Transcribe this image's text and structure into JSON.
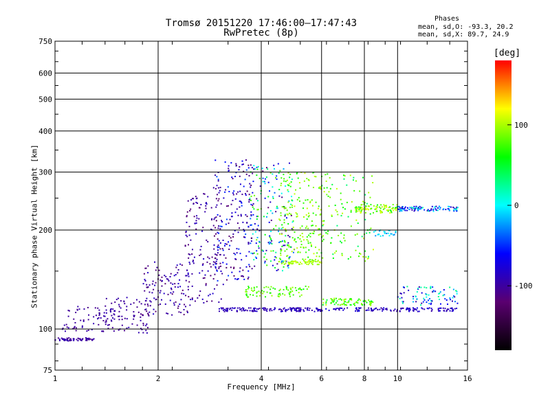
{
  "header": {
    "title_line1": "Tromsø 20151220 17:46:00–17:47:43",
    "title_line2": "RwPretec (8p)",
    "info_heading": "Phases",
    "info_o": "mean, sd,O: -93.3, 20.2",
    "info_x": "mean, sd,X:  89.7, 24.9"
  },
  "chart_data": {
    "type": "scatter",
    "xlabel": "Frequency [MHz]",
    "ylabel": "Stationary phase Virtual Height [km]",
    "xscale": "log",
    "yscale": "log",
    "xlim": [
      1,
      16
    ],
    "ylim": [
      75,
      750
    ],
    "x_ticks": [
      1,
      2,
      4,
      6,
      8,
      10,
      16
    ],
    "y_ticks": [
      75,
      100,
      200,
      300,
      400,
      500,
      600,
      750
    ],
    "grid": true,
    "colorbar": {
      "label": "[deg]",
      "range": [
        -180,
        180
      ],
      "ticks": [
        -100,
        0,
        100
      ],
      "colors": [
        "#000000",
        "#5a0070",
        "#0000ff",
        "#00ffff",
        "#00ff00",
        "#ffff00",
        "#ff0000"
      ]
    },
    "point_clusters": [
      {
        "x": [
          1.0,
          1.3
        ],
        "y": [
          92,
          94
        ],
        "phase": [
          -110,
          -90
        ],
        "n": 60
      },
      {
        "x": [
          1.05,
          1.5
        ],
        "y": [
          98,
          118
        ],
        "phase": [
          -110,
          -90
        ],
        "n": 70
      },
      {
        "x": [
          1.4,
          1.9
        ],
        "y": [
          97,
          125
        ],
        "phase": [
          -110,
          -90
        ],
        "n": 80
      },
      {
        "x": [
          1.8,
          2.5
        ],
        "y": [
          110,
          160
        ],
        "phase": [
          -120,
          -80
        ],
        "n": 120
      },
      {
        "x": [
          2.4,
          3.1
        ],
        "y": [
          120,
          260
        ],
        "phase": [
          -120,
          -80
        ],
        "n": 150
      },
      {
        "x": [
          2.9,
          3.8
        ],
        "y": [
          140,
          330
        ],
        "phase": [
          -130,
          -40
        ],
        "n": 200
      },
      {
        "x": [
          3.0,
          6.0
        ],
        "y": [
          113,
          116
        ],
        "phase": [
          -100,
          -80
        ],
        "n": 140
      },
      {
        "x": [
          6.0,
          15.0
        ],
        "y": [
          113,
          116
        ],
        "phase": [
          -100,
          -70
        ],
        "n": 120
      },
      {
        "x": [
          3.7,
          5.0
        ],
        "y": [
          150,
          320
        ],
        "phase": [
          -120,
          90
        ],
        "n": 200
      },
      {
        "x": [
          4.5,
          6.0
        ],
        "y": [
          160,
          300
        ],
        "phase": [
          60,
          110
        ],
        "n": 180
      },
      {
        "x": [
          4.5,
          6.0
        ],
        "y": [
          157,
          162
        ],
        "phase": [
          90,
          110
        ],
        "n": 60
      },
      {
        "x": [
          3.6,
          5.5
        ],
        "y": [
          125,
          135
        ],
        "phase": [
          60,
          100
        ],
        "n": 80
      },
      {
        "x": [
          6.0,
          8.5
        ],
        "y": [
          118,
          124
        ],
        "phase": [
          40,
          110
        ],
        "n": 80
      },
      {
        "x": [
          6.0,
          8.5
        ],
        "y": [
          160,
          300
        ],
        "phase": [
          30,
          110
        ],
        "n": 120
      },
      {
        "x": [
          7.5,
          10.0
        ],
        "y": [
          225,
          240
        ],
        "phase": [
          60,
          120
        ],
        "n": 90
      },
      {
        "x": [
          10.0,
          15.0
        ],
        "y": [
          228,
          236
        ],
        "phase": [
          -100,
          20
        ],
        "n": 100
      },
      {
        "x": [
          10.0,
          15.0
        ],
        "y": [
          118,
          135
        ],
        "phase": [
          -100,
          40
        ],
        "n": 80
      },
      {
        "x": [
          8.5,
          10.0
        ],
        "y": [
          190,
          200
        ],
        "phase": [
          -40,
          10
        ],
        "n": 25
      }
    ]
  }
}
